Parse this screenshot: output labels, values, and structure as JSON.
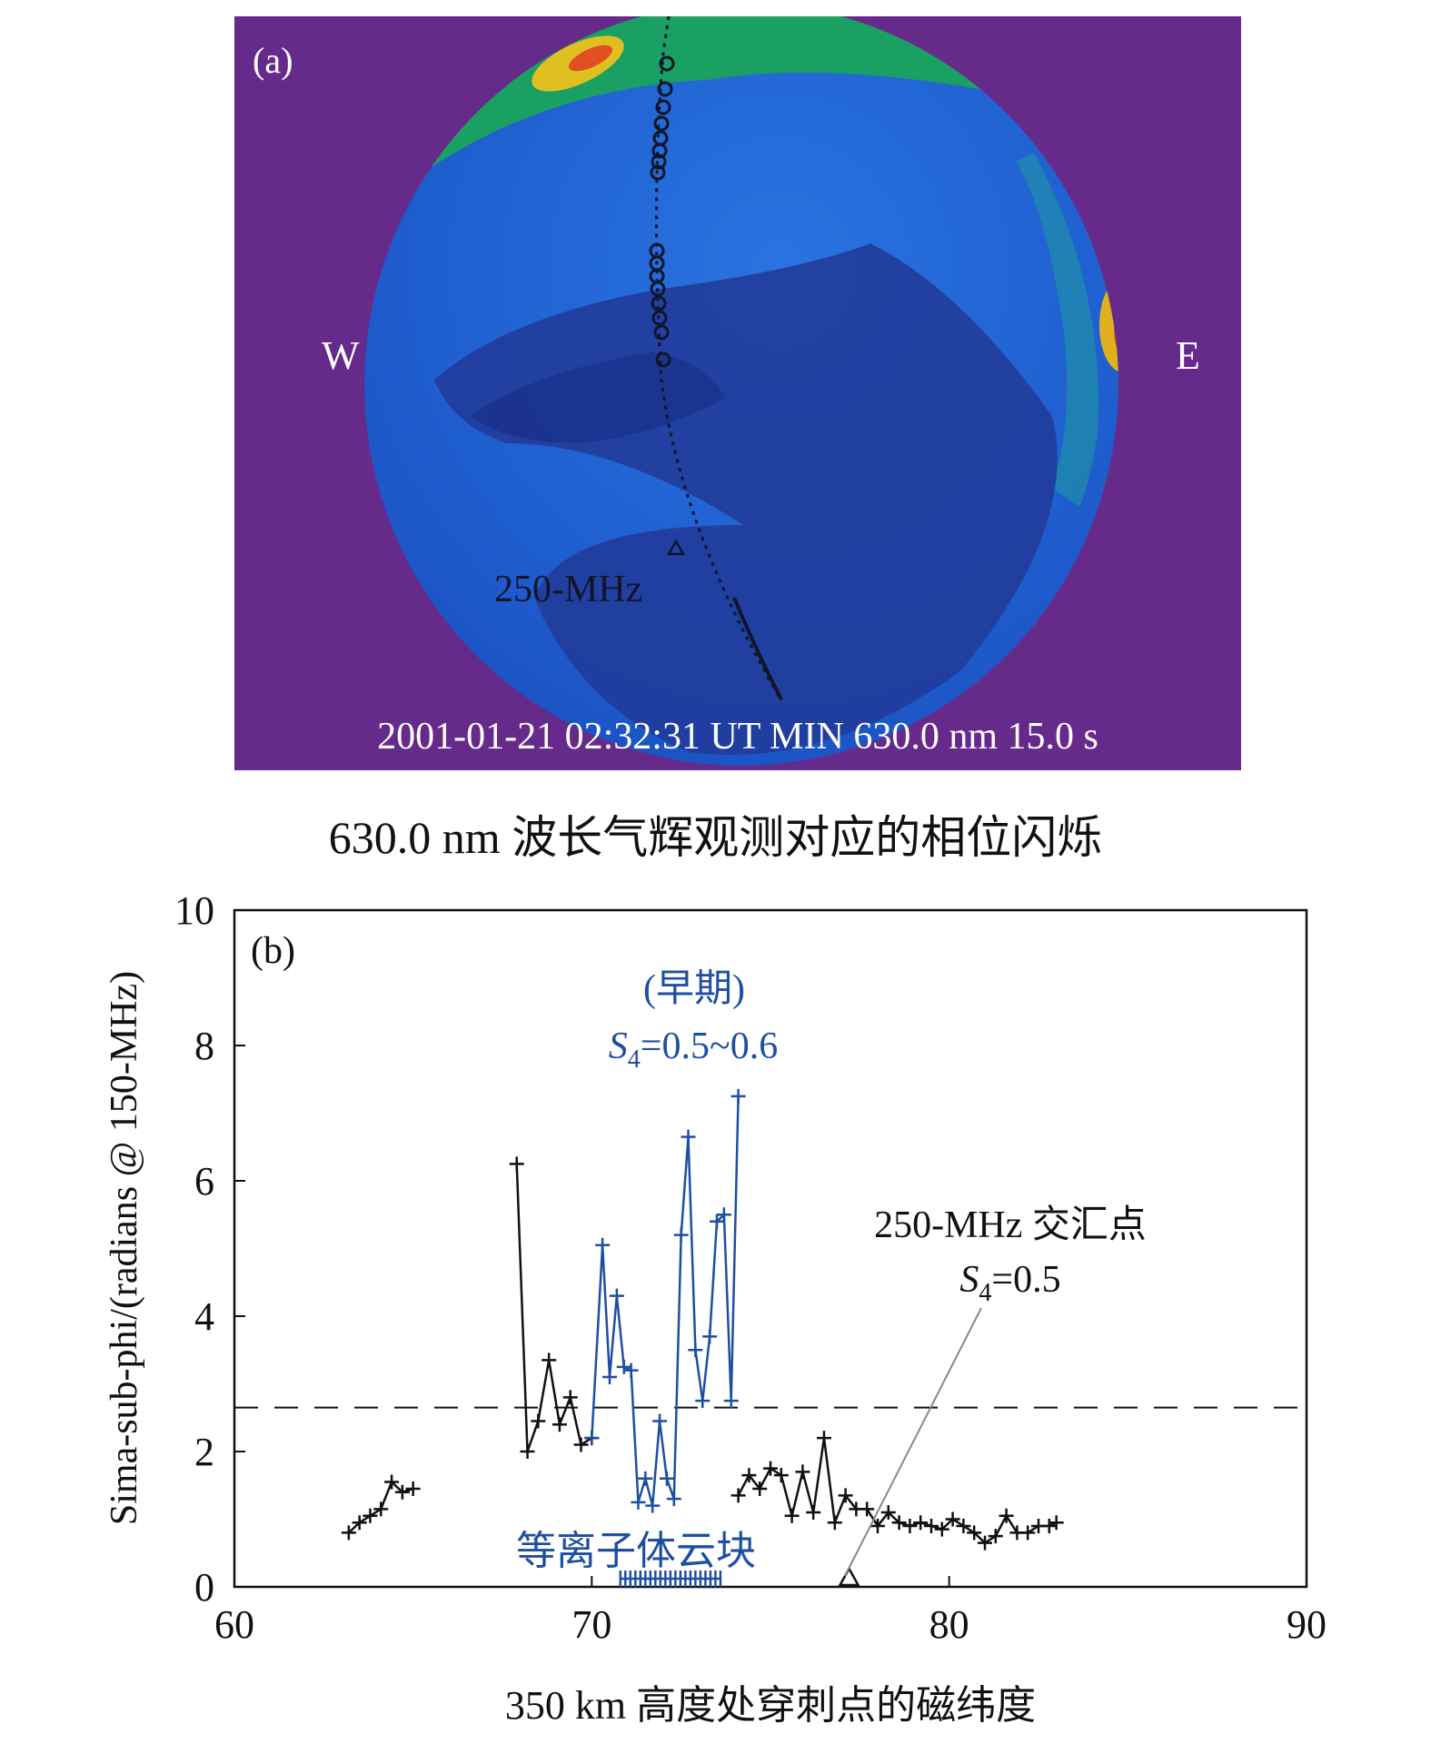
{
  "panel_a": {
    "label": "(a)",
    "west_label": "W",
    "east_label": "E",
    "marker_label": "250-MHz",
    "info_line": "2001-01-21 02:32:31 UT MIN 630.0 nm 15.0 s",
    "caption": "630.0 nm 波长气辉观测对应的相位闪烁",
    "colors": {
      "background": "#662a8a",
      "sky": "#1f63d6",
      "deep": "#213c9a",
      "edge": "#1aa35c",
      "hot": "#e0d020"
    }
  },
  "chart_data": {
    "type": "line",
    "panel_label": "(b)",
    "xlabel": "350 km 高度处穿刺点的磁纬度",
    "ylabel": "Sima-sub-phi/(radians @ 150-MHz)",
    "xlim": [
      60,
      90
    ],
    "ylim": [
      0,
      10
    ],
    "x_ticks": [
      60,
      70,
      80,
      90
    ],
    "y_ticks": [
      0,
      2,
      4,
      6,
      8,
      10
    ],
    "grid": false,
    "threshold_y": 2.65,
    "series": [
      {
        "color": "#111111",
        "x": [
          63.2,
          63.5,
          63.8,
          64.1,
          64.4,
          64.7,
          65.0
        ],
        "y": [
          0.8,
          0.95,
          1.05,
          1.15,
          1.55,
          1.4,
          1.45
        ]
      },
      {
        "color": "#111111",
        "x": [
          67.9,
          68.2,
          68.5,
          68.8,
          69.1,
          69.4,
          69.7,
          70.0
        ],
        "y": [
          6.25,
          2.0,
          2.45,
          3.35,
          2.4,
          2.8,
          2.1,
          2.2
        ]
      },
      {
        "color": "#1f4fa0",
        "x": [
          70.0,
          70.3,
          70.5,
          70.7,
          70.9,
          71.1,
          71.3,
          71.5,
          71.7,
          71.9,
          72.1,
          72.3,
          72.5,
          72.7,
          72.9,
          73.1,
          73.3,
          73.5,
          73.7,
          73.9,
          74.1
        ],
        "y": [
          2.2,
          5.05,
          3.1,
          4.3,
          3.25,
          3.2,
          1.25,
          1.6,
          1.2,
          2.45,
          1.6,
          1.3,
          5.2,
          6.65,
          3.5,
          2.75,
          3.7,
          5.4,
          5.5,
          2.75,
          7.25
        ]
      },
      {
        "color": "#111111",
        "x": [
          74.1,
          74.4,
          74.7,
          75.0,
          75.3,
          75.6,
          75.9,
          76.2,
          76.5,
          76.8,
          77.1,
          77.4,
          77.7,
          78.0,
          78.3,
          78.6,
          78.9,
          79.2,
          79.5,
          79.8,
          80.1,
          80.4,
          80.7,
          81.0,
          81.3,
          81.6,
          81.9,
          82.2,
          82.5,
          82.8,
          83.0
        ],
        "y": [
          1.35,
          1.65,
          1.45,
          1.75,
          1.65,
          1.05,
          1.7,
          1.1,
          2.2,
          0.95,
          1.35,
          1.15,
          1.15,
          0.9,
          1.1,
          0.95,
          0.9,
          0.95,
          0.9,
          0.85,
          1.0,
          0.9,
          0.8,
          0.65,
          0.75,
          1.05,
          0.8,
          0.8,
          0.9,
          0.9,
          0.95
        ]
      }
    ],
    "annotations": [
      {
        "text": "(早期)",
        "color": "#1f4fa0"
      },
      {
        "text": "S4=0.5~0.6",
        "color": "#1f4fa0"
      },
      {
        "text": "250-MHz 交汇点",
        "color": "#111111"
      },
      {
        "text": "S4=0.5",
        "color": "#111111"
      },
      {
        "text": "等离子体云块",
        "color": "#1f4fa0"
      }
    ],
    "cloud_span_x": [
      70.8,
      73.6
    ],
    "crossing_marker_x": 77.2
  }
}
